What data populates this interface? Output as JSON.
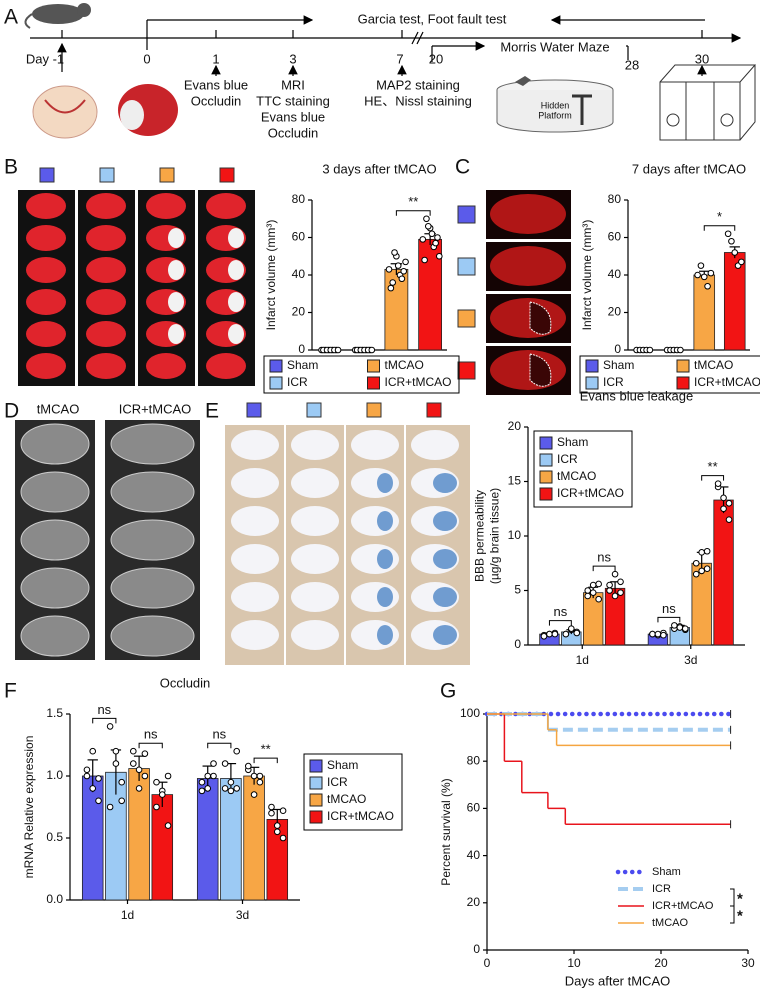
{
  "panel_labels": [
    "A",
    "B",
    "C",
    "D",
    "E",
    "F",
    "G"
  ],
  "timeline": {
    "day_labels": [
      "Day -1",
      "0",
      "1",
      "3",
      "7",
      "20",
      "28",
      "30"
    ],
    "ranges": [
      "Garcia test, Foot fault test",
      "Morris Water Maze"
    ],
    "assays": [
      [
        "Evans blue",
        "Occludin"
      ],
      [
        "MRI",
        "TTC staining",
        "Evans blue",
        "Occludin"
      ],
      [
        "MAP2 staining",
        "HE、Nissl staining"
      ]
    ],
    "platform_label": [
      "Hidden",
      "Platform"
    ]
  },
  "mri_labels": [
    "tMCAO",
    "ICR+tMCAO"
  ],
  "chart_data": [
    {
      "type": "bar",
      "title": "3 days after tMCAO",
      "ylabel": "Infarct volume (mm³)",
      "categories": [
        "Sham",
        "ICR",
        "tMCAO",
        "ICR+tMCAO"
      ],
      "colors": [
        "#5b5bea",
        "#9ccaf4",
        "#f7a645",
        "#f21414"
      ],
      "values": [
        0,
        0,
        43,
        59
      ],
      "errors": [
        0,
        0,
        3,
        3
      ],
      "points": [
        [
          0,
          0,
          0,
          0,
          0,
          0,
          0,
          0,
          0,
          0
        ],
        [
          0,
          0,
          0,
          0,
          0,
          0,
          0,
          0,
          0,
          0
        ],
        [
          43,
          36,
          50,
          40,
          42,
          33,
          52,
          45,
          38,
          47
        ],
        [
          59,
          70,
          65,
          55,
          60,
          48,
          66,
          62,
          57,
          50
        ]
      ],
      "ylim": [
        0,
        80
      ],
      "yticks": [
        0,
        20,
        40,
        60,
        80
      ],
      "annotations": [
        {
          "text": "**",
          "between": [
            "tMCAO",
            "ICR+tMCAO"
          ]
        }
      ],
      "legend": "bottom"
    },
    {
      "type": "bar",
      "title": "7 days after tMCAO",
      "ylabel": "Infarct volume (mm³)",
      "categories": [
        "Sham",
        "ICR",
        "tMCAO",
        "ICR+tMCAO"
      ],
      "colors": [
        "#5b5bea",
        "#9ccaf4",
        "#f7a645",
        "#f21414"
      ],
      "values": [
        0,
        0,
        40,
        52
      ],
      "errors": [
        0,
        0,
        2,
        3
      ],
      "points": [
        [
          0,
          0,
          0,
          0,
          0
        ],
        [
          0,
          0,
          0,
          0,
          0
        ],
        [
          40,
          45,
          39,
          34,
          41
        ],
        [
          62,
          58,
          52,
          45,
          47
        ]
      ],
      "ylim": [
        0,
        80
      ],
      "yticks": [
        0,
        20,
        40,
        60,
        80
      ],
      "annotations": [
        {
          "text": "*",
          "between": [
            "tMCAO",
            "ICR+tMCAO"
          ]
        }
      ],
      "legend": "bottom"
    },
    {
      "type": "grouped_bar",
      "title": "Evans blue leakage",
      "ylabel": [
        "BBB permeability",
        "(µg/g brain tissue)"
      ],
      "categories": [
        "1d",
        "3d"
      ],
      "series": [
        {
          "name": "Sham",
          "color": "#5b5bea",
          "values": [
            1.0,
            1.0
          ],
          "errors": [
            0.1,
            0.1
          ],
          "points": [
            [
              0.9,
              1.0,
              1.1,
              0.8,
              1.0,
              1.0
            ],
            [
              1.0,
              0.9,
              1.1,
              1.0,
              1.0,
              0.9
            ]
          ]
        },
        {
          "name": "ICR",
          "color": "#9ccaf4",
          "values": [
            1.2,
            1.6
          ],
          "errors": [
            0.2,
            0.2
          ],
          "points": [
            [
              1.0,
              1.4,
              1.2,
              1.0,
              1.5,
              1.1
            ],
            [
              1.5,
              1.7,
              1.4,
              1.8,
              1.6,
              1.5
            ]
          ]
        },
        {
          "name": "tMCAO",
          "color": "#f7a645",
          "values": [
            4.8,
            7.5
          ],
          "errors": [
            0.5,
            1.0
          ],
          "points": [
            [
              4.5,
              5.5,
              4.2,
              5.0,
              4.8,
              5.6
            ],
            [
              6.5,
              8.5,
              7.0,
              7.5,
              6.8,
              8.6
            ]
          ]
        },
        {
          "name": "ICR+tMCAO",
          "color": "#f21414",
          "values": [
            5.2,
            13.3
          ],
          "errors": [
            0.6,
            1.2
          ],
          "points": [
            [
              5.0,
              6.5,
              4.8,
              5.5,
              4.5,
              5.8
            ],
            [
              14.5,
              13.5,
              11.5,
              14.8,
              12.5,
              13.0
            ]
          ]
        }
      ],
      "ylim": [
        0,
        20
      ],
      "yticks": [
        0,
        5,
        10,
        15,
        20
      ],
      "annotations": [
        {
          "text": "ns",
          "category": "1d",
          "between": [
            "Sham",
            "ICR"
          ]
        },
        {
          "text": "ns",
          "category": "1d",
          "between": [
            "tMCAO",
            "ICR+tMCAO"
          ]
        },
        {
          "text": "ns",
          "category": "3d",
          "between": [
            "Sham",
            "ICR"
          ]
        },
        {
          "text": "**",
          "category": "3d",
          "between": [
            "tMCAO",
            "ICR+tMCAO"
          ]
        }
      ],
      "legend": "upper left"
    },
    {
      "type": "grouped_bar",
      "title": "Occludin",
      "ylabel": "mRNA Relative expression",
      "categories": [
        "1d",
        "3d"
      ],
      "series": [
        {
          "name": "Sham",
          "color": "#5b5bea",
          "values": [
            1.0,
            0.98
          ],
          "errors": [
            0.13,
            0.1
          ],
          "points": [
            [
              1.05,
              0.9,
              0.8,
              1.0,
              1.2,
              0.98
            ],
            [
              0.88,
              1.0,
              1.1,
              0.95,
              0.9,
              1.0
            ]
          ]
        },
        {
          "name": "ICR",
          "color": "#9ccaf4",
          "values": [
            1.03,
            0.98
          ],
          "errors": [
            0.18,
            0.12
          ],
          "points": [
            [
              1.4,
              1.1,
              0.8,
              0.75,
              1.2,
              0.95
            ],
            [
              1.1,
              0.88,
              1.2,
              0.9,
              0.95,
              0.9
            ]
          ]
        },
        {
          "name": "tMCAO",
          "color": "#f7a645",
          "values": [
            1.06,
            1.0
          ],
          "errors": [
            0.1,
            0.07
          ],
          "points": [
            [
              1.2,
              1.05,
              1.0,
              1.1,
              0.9,
              1.18
            ],
            [
              1.05,
              1.0,
              0.95,
              1.08,
              0.85,
              1.0
            ]
          ]
        },
        {
          "name": "ICR+tMCAO",
          "color": "#f21414",
          "values": [
            0.85,
            0.65
          ],
          "errors": [
            0.1,
            0.08
          ],
          "points": [
            [
              0.95,
              0.88,
              0.6,
              0.75,
              0.85,
              1.0
            ],
            [
              0.75,
              0.6,
              0.5,
              0.7,
              0.55,
              0.72
            ]
          ]
        }
      ],
      "ylim": [
        0,
        1.5
      ],
      "yticks": [
        {
          "value": 0,
          "label": "0.0"
        },
        0.5,
        {
          "value": 1,
          "label": "1.0"
        },
        1.5
      ],
      "annotations": [
        {
          "text": "ns",
          "category": "1d",
          "between": [
            "Sham",
            "ICR"
          ]
        },
        {
          "text": "ns",
          "category": "1d",
          "between": [
            "tMCAO",
            "ICR+tMCAO"
          ]
        },
        {
          "text": "ns",
          "category": "3d",
          "between": [
            "Sham",
            "ICR"
          ]
        },
        {
          "text": "**",
          "category": "3d",
          "between": [
            "tMCAO",
            "ICR+tMCAO"
          ]
        }
      ],
      "legend": "right"
    },
    {
      "type": "step_line",
      "xlabel": "Days after tMCAO",
      "ylabel": "Percent survival (%)",
      "series": [
        {
          "name": "Sham",
          "color": "#4b4bef",
          "style": "dotted",
          "x": [
            0,
            28
          ],
          "values": [
            100,
            100
          ]
        },
        {
          "name": "ICR",
          "color": "#a5cdf0",
          "style": "dashed",
          "x": [
            0,
            7,
            28
          ],
          "values": [
            100,
            93.3,
            93.3
          ]
        },
        {
          "name": "ICR+tMCAO",
          "color": "#e8141c",
          "style": "solid",
          "x": [
            0,
            2,
            4,
            7,
            9,
            28
          ],
          "values": [
            100,
            80,
            66.7,
            60,
            53.3,
            53.3
          ]
        },
        {
          "name": "tMCAO",
          "color": "#f5a540",
          "style": "solid",
          "x": [
            0,
            7,
            8,
            28
          ],
          "values": [
            100,
            93.3,
            86.7,
            86.7
          ]
        }
      ],
      "xlim": [
        0,
        30
      ],
      "xticks": [
        0,
        10,
        20,
        30
      ],
      "ylim": [
        0,
        100
      ],
      "yticks": [
        0,
        20,
        40,
        60,
        80,
        100
      ],
      "annotations": [
        {
          "text": "*",
          "between": [
            "ICR",
            "ICR+tMCAO"
          ]
        },
        {
          "text": "*",
          "between": [
            "ICR+tMCAO",
            "tMCAO"
          ]
        }
      ],
      "legend": "lower right"
    }
  ]
}
